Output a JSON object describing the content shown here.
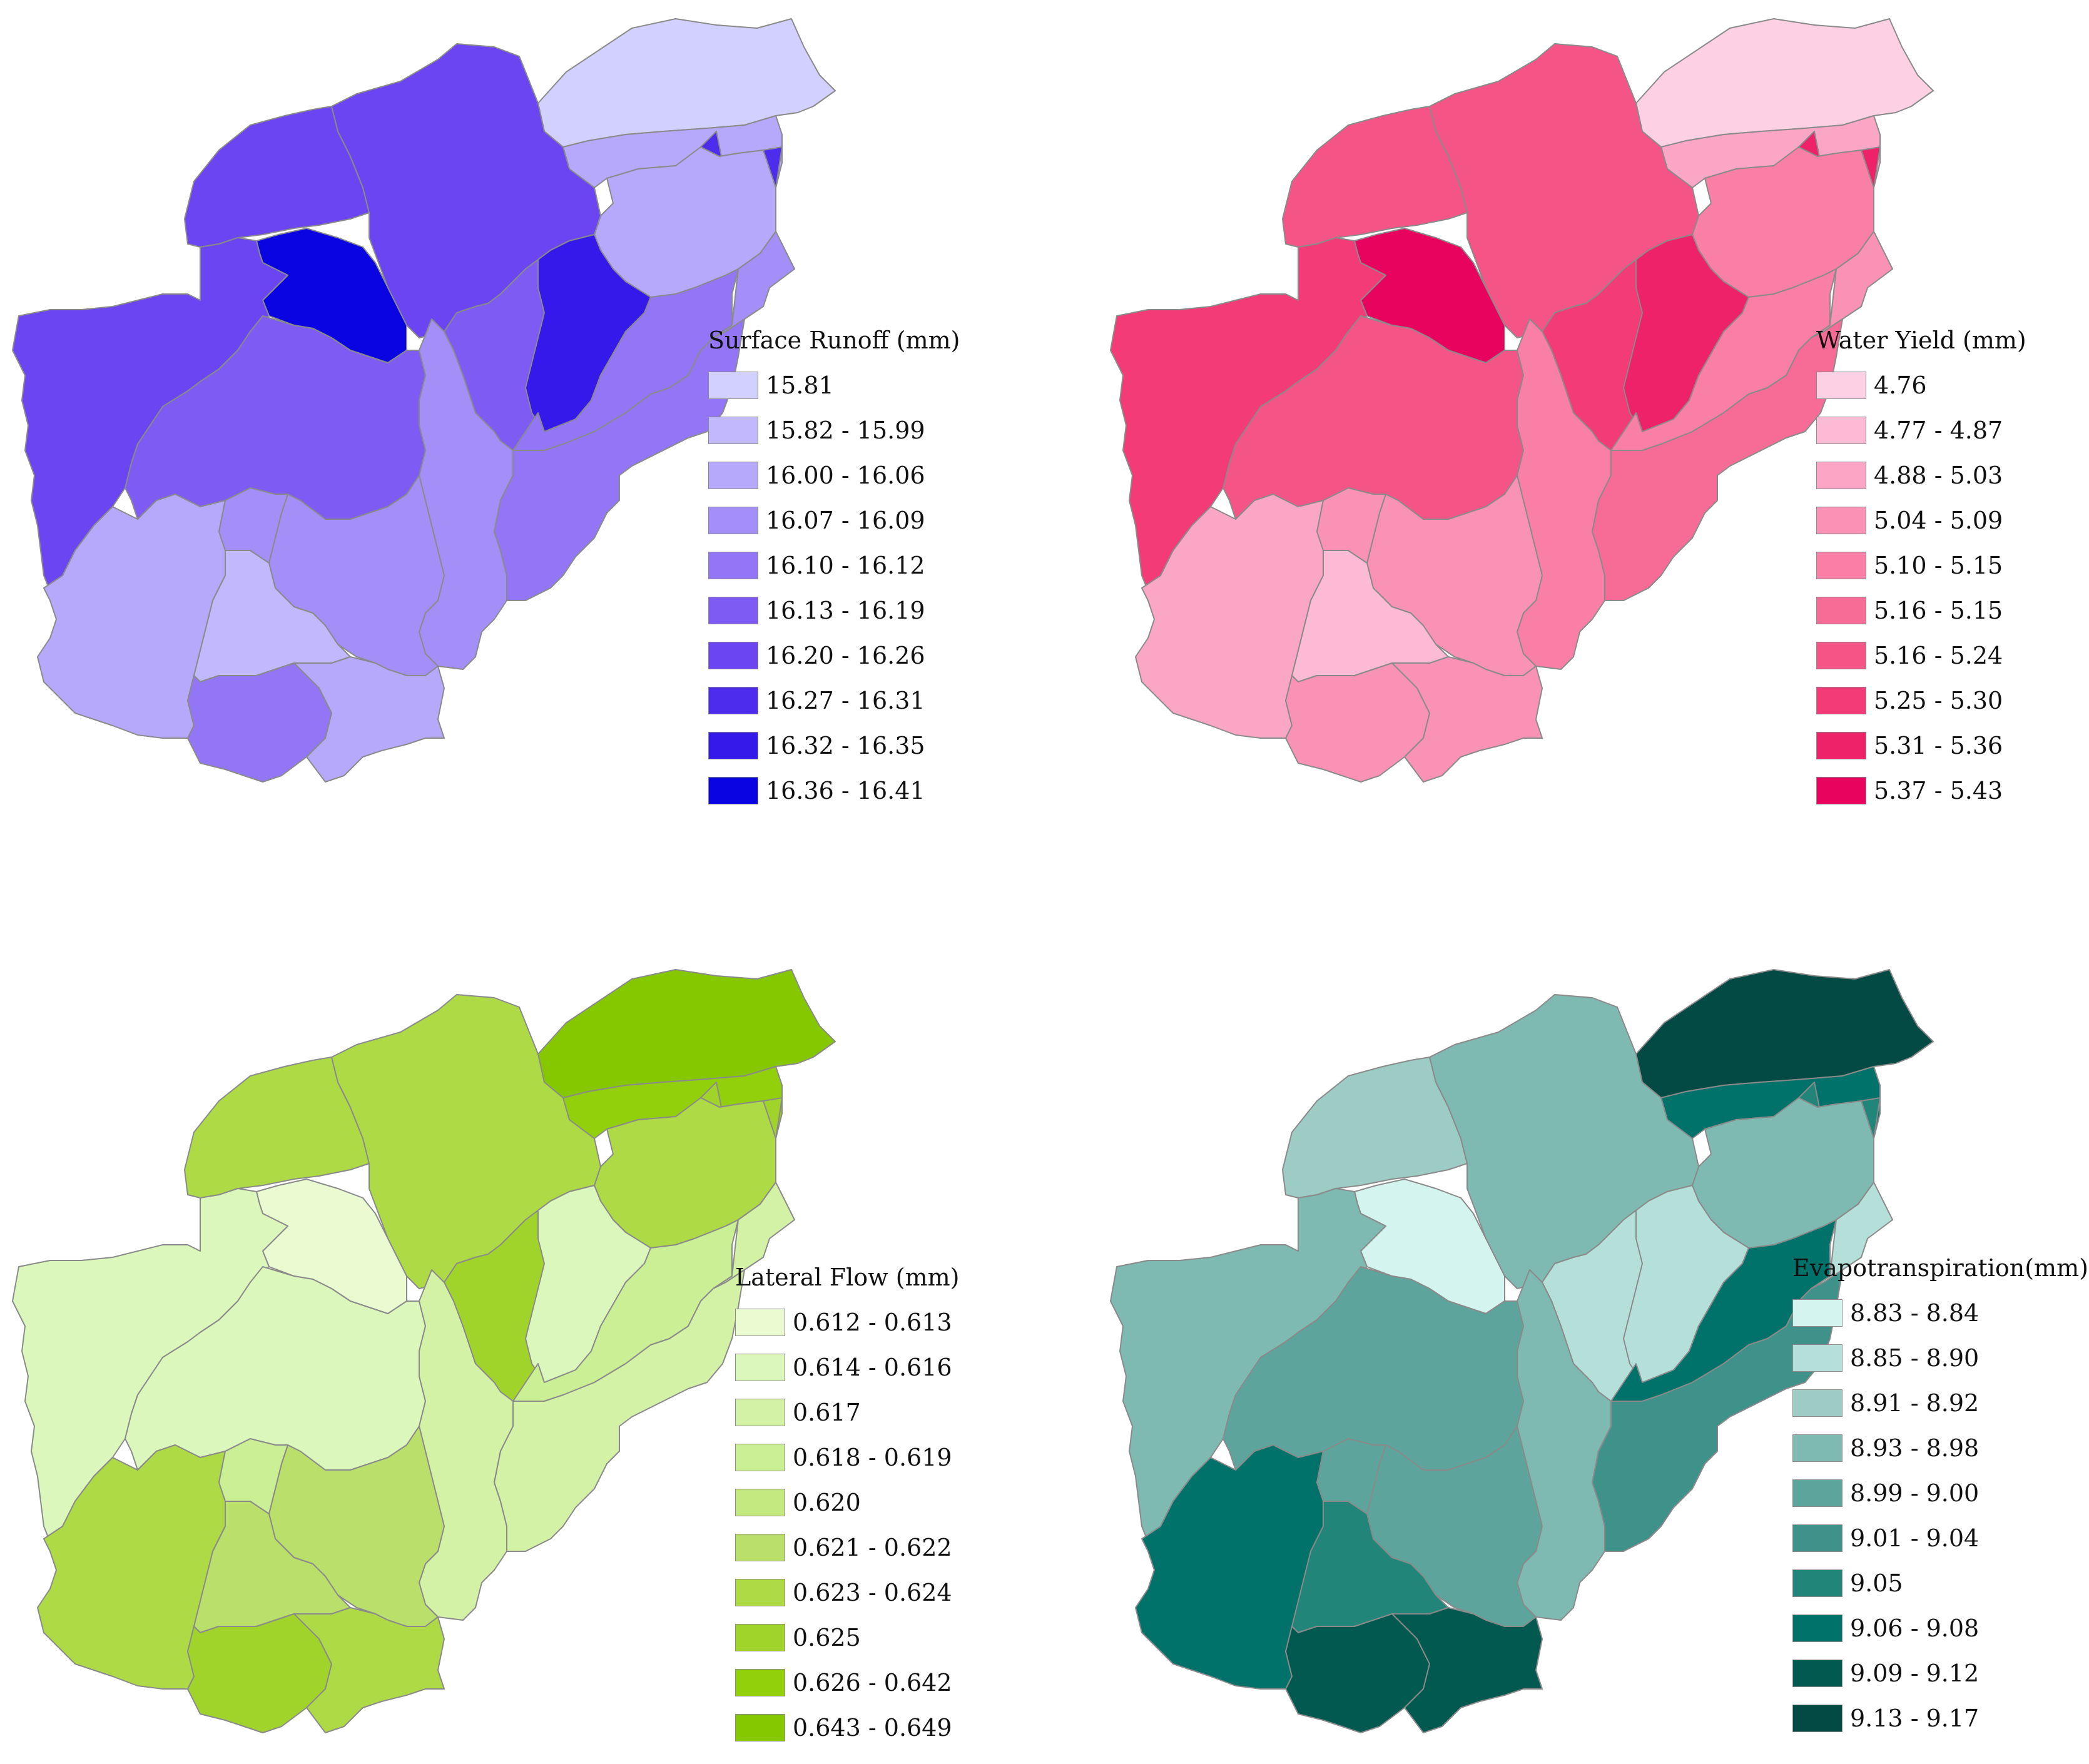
{
  "panels": [
    {
      "id": "surface",
      "legend_title": "Surface Runoff (mm)",
      "classes": [
        {
          "label": "15.81",
          "color": "#d2d0ff"
        },
        {
          "label": "15.82 - 15.99",
          "color": "#c1b8fe"
        },
        {
          "label": "16.00 - 16.06",
          "color": "#b6a8fb"
        },
        {
          "label": "16.07 - 16.09",
          "color": "#a48ff8"
        },
        {
          "label": "16.10 - 16.12",
          "color": "#9276f6"
        },
        {
          "label": "16.13 - 16.19",
          "color": "#7e5cf3"
        },
        {
          "label": "16.20 - 16.26",
          "color": "#6c45f2"
        },
        {
          "label": "16.27 - 16.31",
          "color": "#4e2cee"
        },
        {
          "label": "16.32 - 16.35",
          "color": "#3518ea"
        },
        {
          "label": "16.36 - 16.41",
          "color": "#0a04e3"
        }
      ],
      "subbasin_classes": [
        0,
        2,
        7,
        2,
        6,
        6,
        5,
        8,
        9,
        6,
        5,
        4,
        3,
        3,
        4,
        3,
        2,
        1,
        3,
        4,
        2
      ]
    },
    {
      "id": "water",
      "legend_title": "Water Yield (mm)",
      "classes": [
        {
          "label": "4.76",
          "color": "#fdd0e3"
        },
        {
          "label": "4.77 - 4.87",
          "color": "#fcbad4"
        },
        {
          "label": "4.88 - 5.03",
          "color": "#fba6c4"
        },
        {
          "label": "5.04 - 5.09",
          "color": "#fa92b5"
        },
        {
          "label": "5.10 - 5.15",
          "color": "#f97fa6"
        },
        {
          "label": "5.16 - 5.15",
          "color": "#f76b97"
        },
        {
          "label": "5.16 - 5.24",
          "color": "#f55487"
        },
        {
          "label": "5.25 - 5.30",
          "color": "#f23b77"
        },
        {
          "label": "5.31 - 5.36",
          "color": "#ee2268"
        },
        {
          "label": "5.37 - 5.43",
          "color": "#e8045e"
        }
      ],
      "subbasin_classes": [
        0,
        2,
        8,
        4,
        6,
        6,
        7,
        8,
        9,
        7,
        6,
        4,
        3,
        4,
        5,
        3,
        2,
        1,
        3,
        3,
        3
      ]
    },
    {
      "id": "lateral",
      "legend_title": "Lateral Flow (mm)",
      "classes": [
        {
          "label": "0.612 - 0.613",
          "color": "#eafbd2"
        },
        {
          "label": "0.614 - 0.616",
          "color": "#dcf7bb"
        },
        {
          "label": "0.617",
          "color": "#d3f2a6"
        },
        {
          "label": "0.618 - 0.619",
          "color": "#cbef95"
        },
        {
          "label": "0.620",
          "color": "#c3e980"
        },
        {
          "label": "0.621 - 0.622",
          "color": "#badf6b"
        },
        {
          "label": "0.623 - 0.624",
          "color": "#aedb45"
        },
        {
          "label": "0.625",
          "color": "#a1d42b"
        },
        {
          "label": "0.626 - 0.642",
          "color": "#92d00c"
        },
        {
          "label": "0.643 - 0.649",
          "color": "#86c800"
        }
      ],
      "subbasin_classes": [
        9,
        8,
        7,
        6,
        6,
        6,
        7,
        1,
        0,
        1,
        1,
        3,
        2,
        2,
        2,
        5,
        6,
        5,
        3,
        7,
        6
      ]
    },
    {
      "id": "et",
      "legend_title": "Evapotranspiration(mm)",
      "classes": [
        {
          "label": "8.83 - 8.84",
          "color": "#d4f4ef"
        },
        {
          "label": "8.85 - 8.90",
          "color": "#b5e0da"
        },
        {
          "label": "8.91 - 8.92",
          "color": "#9cccc4"
        },
        {
          "label": "8.93 - 8.98",
          "color": "#7eb9b2"
        },
        {
          "label": "8.99 - 9.00",
          "color": "#5da49d"
        },
        {
          "label": "9.01 - 9.04",
          "color": "#3f928a"
        },
        {
          "label": "9.05",
          "color": "#21857a"
        },
        {
          "label": "9.06 - 9.08",
          "color": "#00726a"
        },
        {
          "label": "9.09 - 9.12",
          "color": "#01594f"
        },
        {
          "label": "9.13 - 9.17",
          "color": "#024a43"
        }
      ],
      "subbasin_classes": [
        9,
        7,
        6,
        3,
        2,
        3,
        1,
        1,
        0,
        3,
        4,
        7,
        1,
        3,
        5,
        4,
        7,
        6,
        4,
        8,
        8
      ]
    }
  ]
}
